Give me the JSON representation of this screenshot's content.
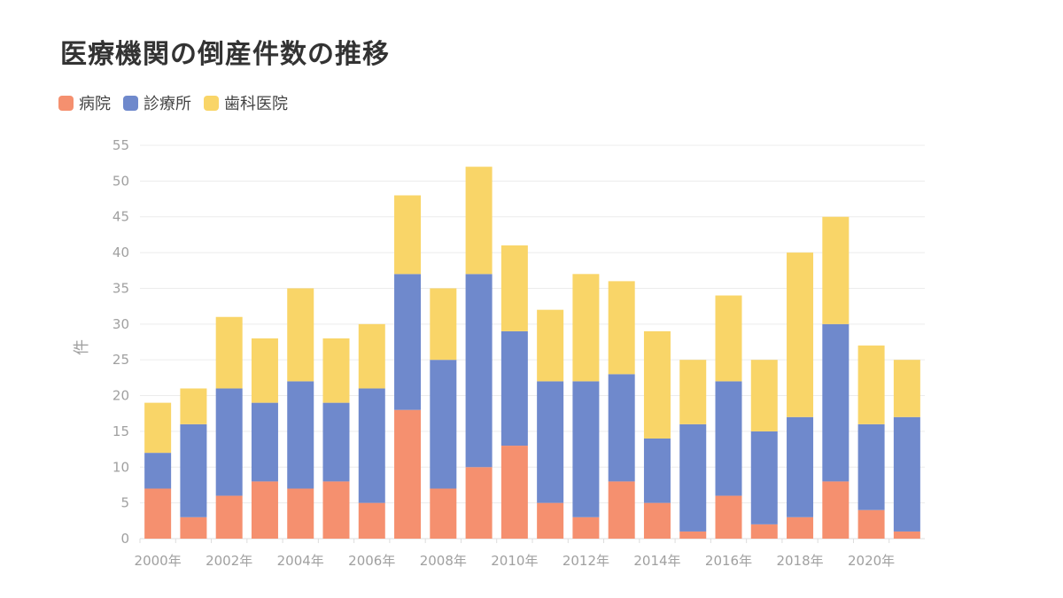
{
  "title": "医療機関の倒産件数の推移",
  "chart_data": {
    "type": "bar",
    "stacked": true,
    "title": "医療機関の倒産件数の推移",
    "ylabel": "件",
    "xlabel": "",
    "ylim": [
      0,
      55
    ],
    "yticks": [
      0,
      5,
      10,
      15,
      20,
      25,
      30,
      35,
      40,
      45,
      50,
      55
    ],
    "grid": true,
    "legend_position": "top-left",
    "categories": [
      "2000年",
      "2001年",
      "2002年",
      "2003年",
      "2004年",
      "2005年",
      "2006年",
      "2007年",
      "2008年",
      "2009年",
      "2010年",
      "2011年",
      "2012年",
      "2013年",
      "2014年",
      "2015年",
      "2016年",
      "2017年",
      "2018年",
      "2019年",
      "2020年",
      "2021年"
    ],
    "xtick_labels": [
      "2000年",
      "",
      "2002年",
      "",
      "2004年",
      "",
      "2006年",
      "",
      "2008年",
      "",
      "2010年",
      "",
      "2012年",
      "",
      "2014年",
      "",
      "2016年",
      "",
      "2018年",
      "",
      "2020年",
      ""
    ],
    "series": [
      {
        "name": "病院",
        "color": "#f5906f",
        "values": [
          7,
          3,
          6,
          8,
          7,
          8,
          5,
          18,
          7,
          10,
          13,
          5,
          3,
          8,
          5,
          1,
          6,
          2,
          3,
          8,
          4,
          1
        ]
      },
      {
        "name": "診療所",
        "color": "#6f89cc",
        "values": [
          5,
          13,
          15,
          11,
          15,
          11,
          16,
          19,
          18,
          27,
          16,
          17,
          19,
          15,
          9,
          15,
          16,
          13,
          14,
          22,
          12,
          16
        ]
      },
      {
        "name": "歯科医院",
        "color": "#f9d568",
        "values": [
          7,
          5,
          10,
          9,
          13,
          9,
          9,
          11,
          10,
          15,
          12,
          10,
          15,
          13,
          15,
          9,
          12,
          10,
          23,
          15,
          11,
          8
        ]
      }
    ]
  }
}
